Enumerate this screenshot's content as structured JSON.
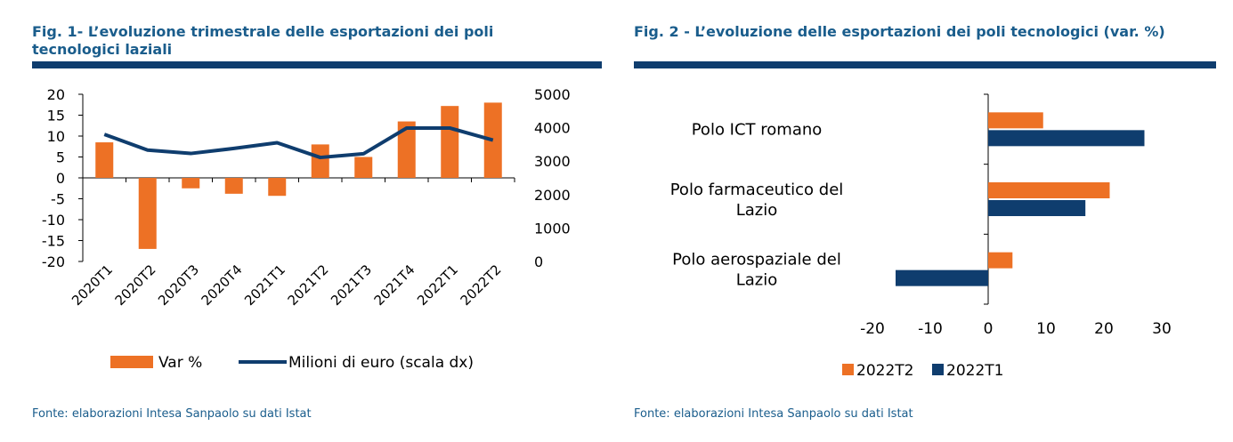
{
  "figures": [
    {
      "title": "Fig. 1- L’evoluzione trimestrale delle esportazioni dei poli tecnologici laziali",
      "source": "Fonte: elaborazioni Intesa Sanpaolo su dati Istat"
    },
    {
      "title": "Fig. 2 - L’evoluzione delle esportazioni dei poli tecnologici (var. %)",
      "source": "Fonte: elaborazioni Intesa Sanpaolo su dati Istat"
    }
  ],
  "colors": {
    "orange": "#ed7125",
    "navy": "#0f3d6e",
    "title_blue": "#1a5d8c"
  },
  "chart_data": [
    {
      "type": "bar",
      "combo": "bar+line",
      "categories": [
        "2020T1",
        "2020T2",
        "2020T3",
        "2020T4",
        "2021T1",
        "2021T2",
        "2021T3",
        "2021T4",
        "2022T1",
        "2022T2"
      ],
      "series": [
        {
          "name": "Var %",
          "type": "bar",
          "axis": "left",
          "values": [
            8.5,
            -17,
            -2.5,
            -3.8,
            -4.3,
            8.0,
            5.0,
            13.5,
            17.2,
            18.0
          ]
        },
        {
          "name": "Milioni di euro (scala dx)",
          "type": "line",
          "axis": "right",
          "values": [
            3800,
            3330,
            3230,
            3380,
            3550,
            3110,
            3220,
            3990,
            3990,
            3630
          ]
        }
      ],
      "ylim": [
        -20,
        20
      ],
      "yticks": [
        20,
        15,
        10,
        5,
        0,
        -5,
        -10,
        -15,
        -20
      ],
      "y2lim": [
        0,
        5000
      ],
      "y2ticks": [
        5000,
        4000,
        3000,
        2000,
        1000,
        0
      ],
      "legend_position": "bottom"
    },
    {
      "type": "bar",
      "orientation": "horizontal",
      "categories": [
        "Polo ICT romano",
        "Polo farmaceutico del Lazio",
        "Polo aerospaziale del Lazio"
      ],
      "series": [
        {
          "name": "2022T2",
          "values": [
            9.5,
            21.0,
            4.2
          ]
        },
        {
          "name": "2022T1",
          "values": [
            27.0,
            16.8,
            -16.0
          ]
        }
      ],
      "xlim": [
        -20,
        30
      ],
      "xticks": [
        -20,
        -10,
        0,
        10,
        20,
        30
      ],
      "legend_position": "bottom"
    }
  ]
}
